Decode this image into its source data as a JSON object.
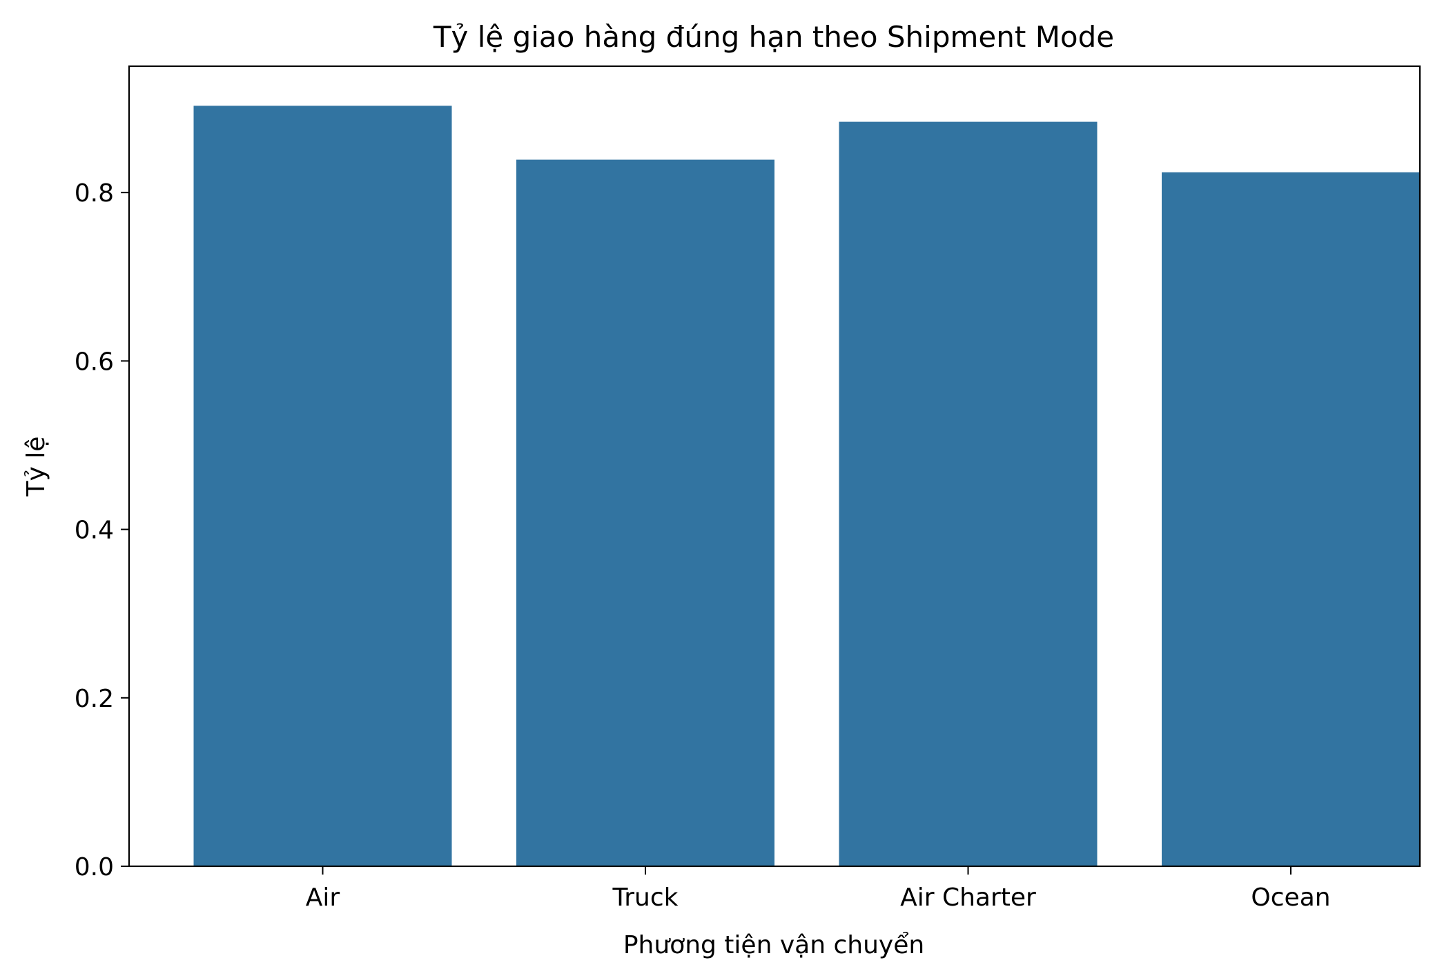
{
  "chart_data": {
    "type": "bar",
    "title": "Tỷ lệ giao hàng đúng hạn theo Shipment Mode",
    "xlabel": "Phương tiện vận chuyển",
    "ylabel": "Tỷ lệ",
    "categories": [
      "Air",
      "Truck",
      "Air Charter",
      "Ocean"
    ],
    "values": [
      0.903,
      0.839,
      0.884,
      0.824
    ],
    "ylim": [
      0,
      0.95
    ],
    "yticks": [
      0.0,
      0.2,
      0.4,
      0.6,
      0.8
    ],
    "ytick_labels": [
      "0.0",
      "0.2",
      "0.4",
      "0.6",
      "0.8"
    ],
    "grid": false,
    "bar_color": "#3274a1"
  }
}
